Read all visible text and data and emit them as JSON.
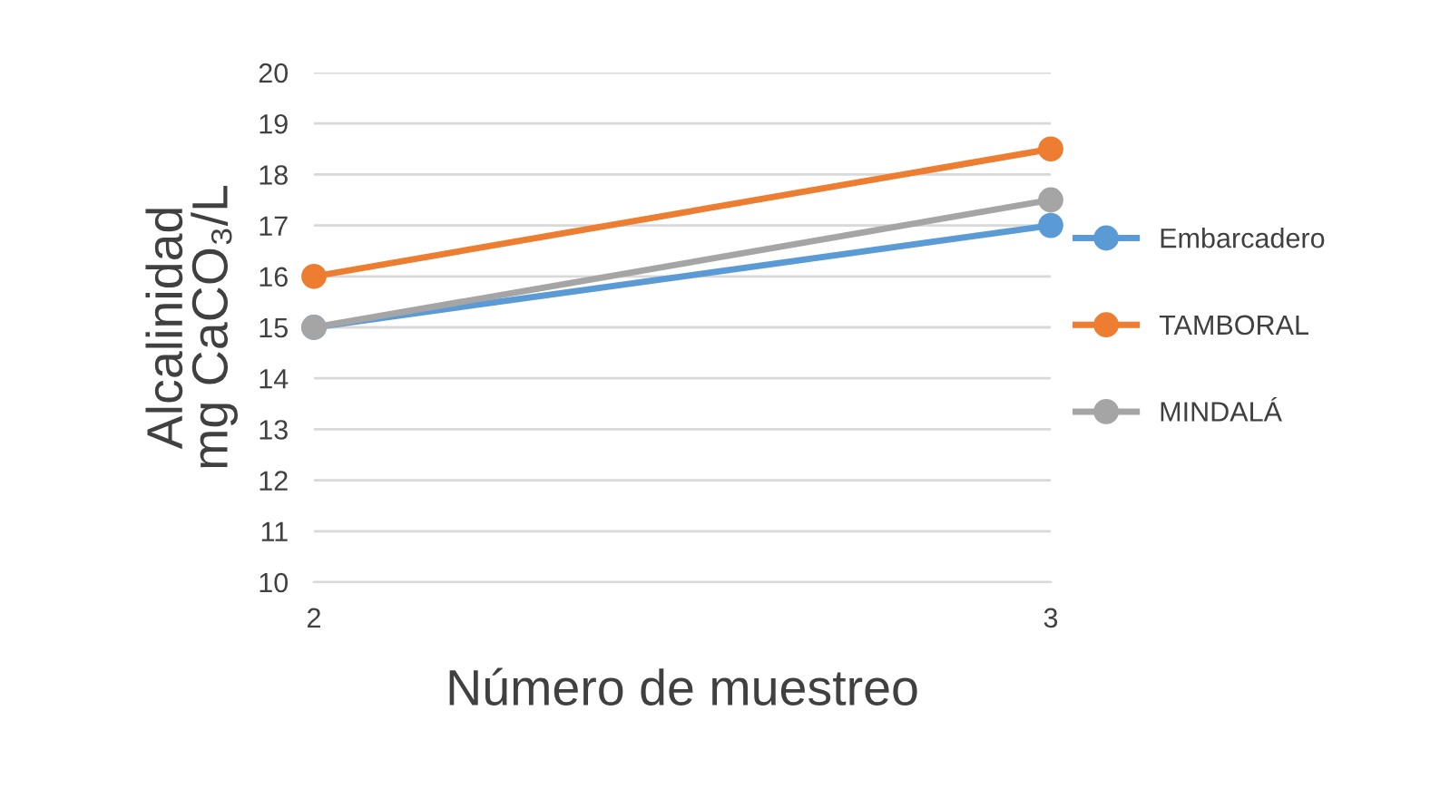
{
  "chart_data": {
    "type": "line",
    "xlabel": "Número de muestreo",
    "ylabel": "Alcalinidad\nmg CaCO₃/L",
    "x": [
      2,
      3
    ],
    "series": [
      {
        "name": "Embarcadero",
        "color": "#5b9bd5",
        "values": [
          15,
          17
        ]
      },
      {
        "name": "TAMBORAL",
        "color": "#ed7d31",
        "values": [
          16,
          18.5
        ]
      },
      {
        "name": "MINDALÁ",
        "color": "#a5a5a5",
        "values": [
          15,
          17.5
        ]
      }
    ],
    "xlim": [
      2,
      3
    ],
    "xticks": [
      2,
      3
    ],
    "ylim": [
      10,
      20
    ],
    "yticks": [
      10,
      11,
      12,
      13,
      14,
      15,
      16,
      17,
      18,
      19,
      20
    ],
    "grid": "y",
    "legend": "right",
    "marker": "circle",
    "line_style": "solid"
  }
}
